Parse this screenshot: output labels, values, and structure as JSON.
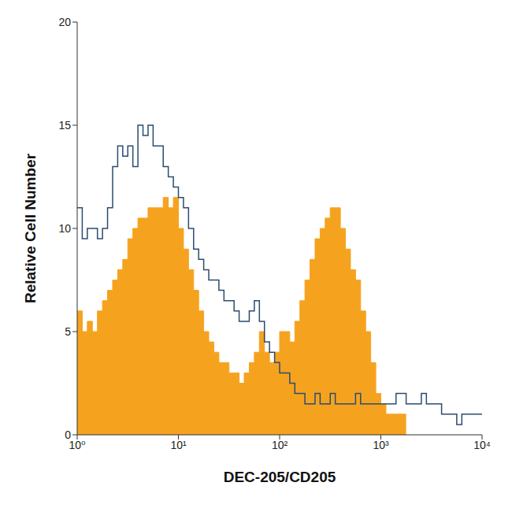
{
  "chart_data": {
    "type": "histogram",
    "x_label": "DEC-205/CD205",
    "y_label": "Relative Cell Number",
    "bins": [
      1,
      1.122,
      1.259,
      1.413,
      1.585,
      1.778,
      1.995,
      2.239,
      2.512,
      2.818,
      3.162,
      3.548,
      3.981,
      4.467,
      5.012,
      5.623,
      6.31,
      7.079,
      7.943,
      8.913,
      10,
      11.22,
      12.59,
      14.13,
      15.85,
      17.78,
      19.95,
      22.39,
      25.12,
      28.18,
      31.62,
      35.48,
      39.81,
      44.67,
      50.12,
      56.23,
      63.1,
      70.79,
      79.43,
      89.13,
      100,
      112.2,
      125.9,
      141.3,
      158.5,
      177.8,
      199.5,
      223.9,
      251.2,
      281.8,
      316.2,
      354.8,
      398.1,
      446.7,
      501.2,
      562.3,
      631,
      707.9,
      794.3,
      891.3,
      1000,
      1122,
      1259,
      1413,
      1585,
      1778,
      1995,
      2239,
      2512,
      2818,
      3162,
      3548,
      3981,
      4467,
      5012,
      5623,
      6310,
      7079,
      7943,
      8913,
      10000
    ],
    "series": [
      {
        "type": "area",
        "color": "#f5a31f",
        "values": [
          6,
          5,
          5.5,
          5,
          6,
          6.5,
          7,
          7.5,
          8,
          8.5,
          9.5,
          10,
          10.5,
          10.5,
          11,
          11,
          11,
          11.5,
          11,
          11.5,
          10,
          9,
          8,
          7,
          6,
          5,
          4.5,
          4,
          3.5,
          3.5,
          3,
          3,
          2.5,
          3,
          3.5,
          4,
          5,
          4,
          3.5,
          4,
          5,
          5,
          4.5,
          5.5,
          6.5,
          7.5,
          8.5,
          9.5,
          10,
          10.5,
          11,
          11,
          10,
          9,
          8,
          7.5,
          6,
          5,
          3.5,
          2,
          1.5,
          1,
          1,
          1,
          1,
          null,
          null,
          null,
          null,
          null,
          null,
          null,
          null,
          null,
          null,
          null,
          null,
          null,
          null,
          null
        ]
      },
      {
        "type": "line",
        "color": "#2b4c70",
        "values": [
          11,
          9.5,
          10,
          10,
          9.5,
          10,
          11,
          13,
          14,
          13.5,
          14,
          13,
          15,
          14.5,
          15,
          14,
          14,
          13,
          12.5,
          12,
          11.5,
          11,
          10,
          9,
          8.5,
          8,
          7.5,
          7.5,
          7,
          6.5,
          6.5,
          6,
          5.5,
          5.5,
          6,
          6.5,
          5.5,
          4.5,
          4,
          3.5,
          3,
          3,
          2.5,
          2,
          2,
          1.5,
          1.5,
          2,
          1.5,
          1.5,
          2,
          1.5,
          1.5,
          1.5,
          1.5,
          2,
          1.5,
          1.5,
          1.5,
          1.5,
          1.5,
          1.5,
          1.5,
          2,
          2,
          1.5,
          1.5,
          1.5,
          2,
          1.5,
          1.5,
          1.5,
          1,
          1,
          1,
          0.5,
          1,
          1,
          1,
          1
        ]
      }
    ],
    "xlim": [
      1,
      10000
    ],
    "xticks": [
      {
        "value": 1,
        "label": "10⁰"
      },
      {
        "value": 10,
        "label": "10¹"
      },
      {
        "value": 100,
        "label": "10²"
      },
      {
        "value": 1000,
        "label": "10³"
      },
      {
        "value": 10000,
        "label": "10⁴"
      }
    ],
    "ylim": [
      0,
      20
    ],
    "yticks": [
      0,
      5,
      10,
      15,
      20
    ],
    "log": "x",
    "grid": false
  }
}
